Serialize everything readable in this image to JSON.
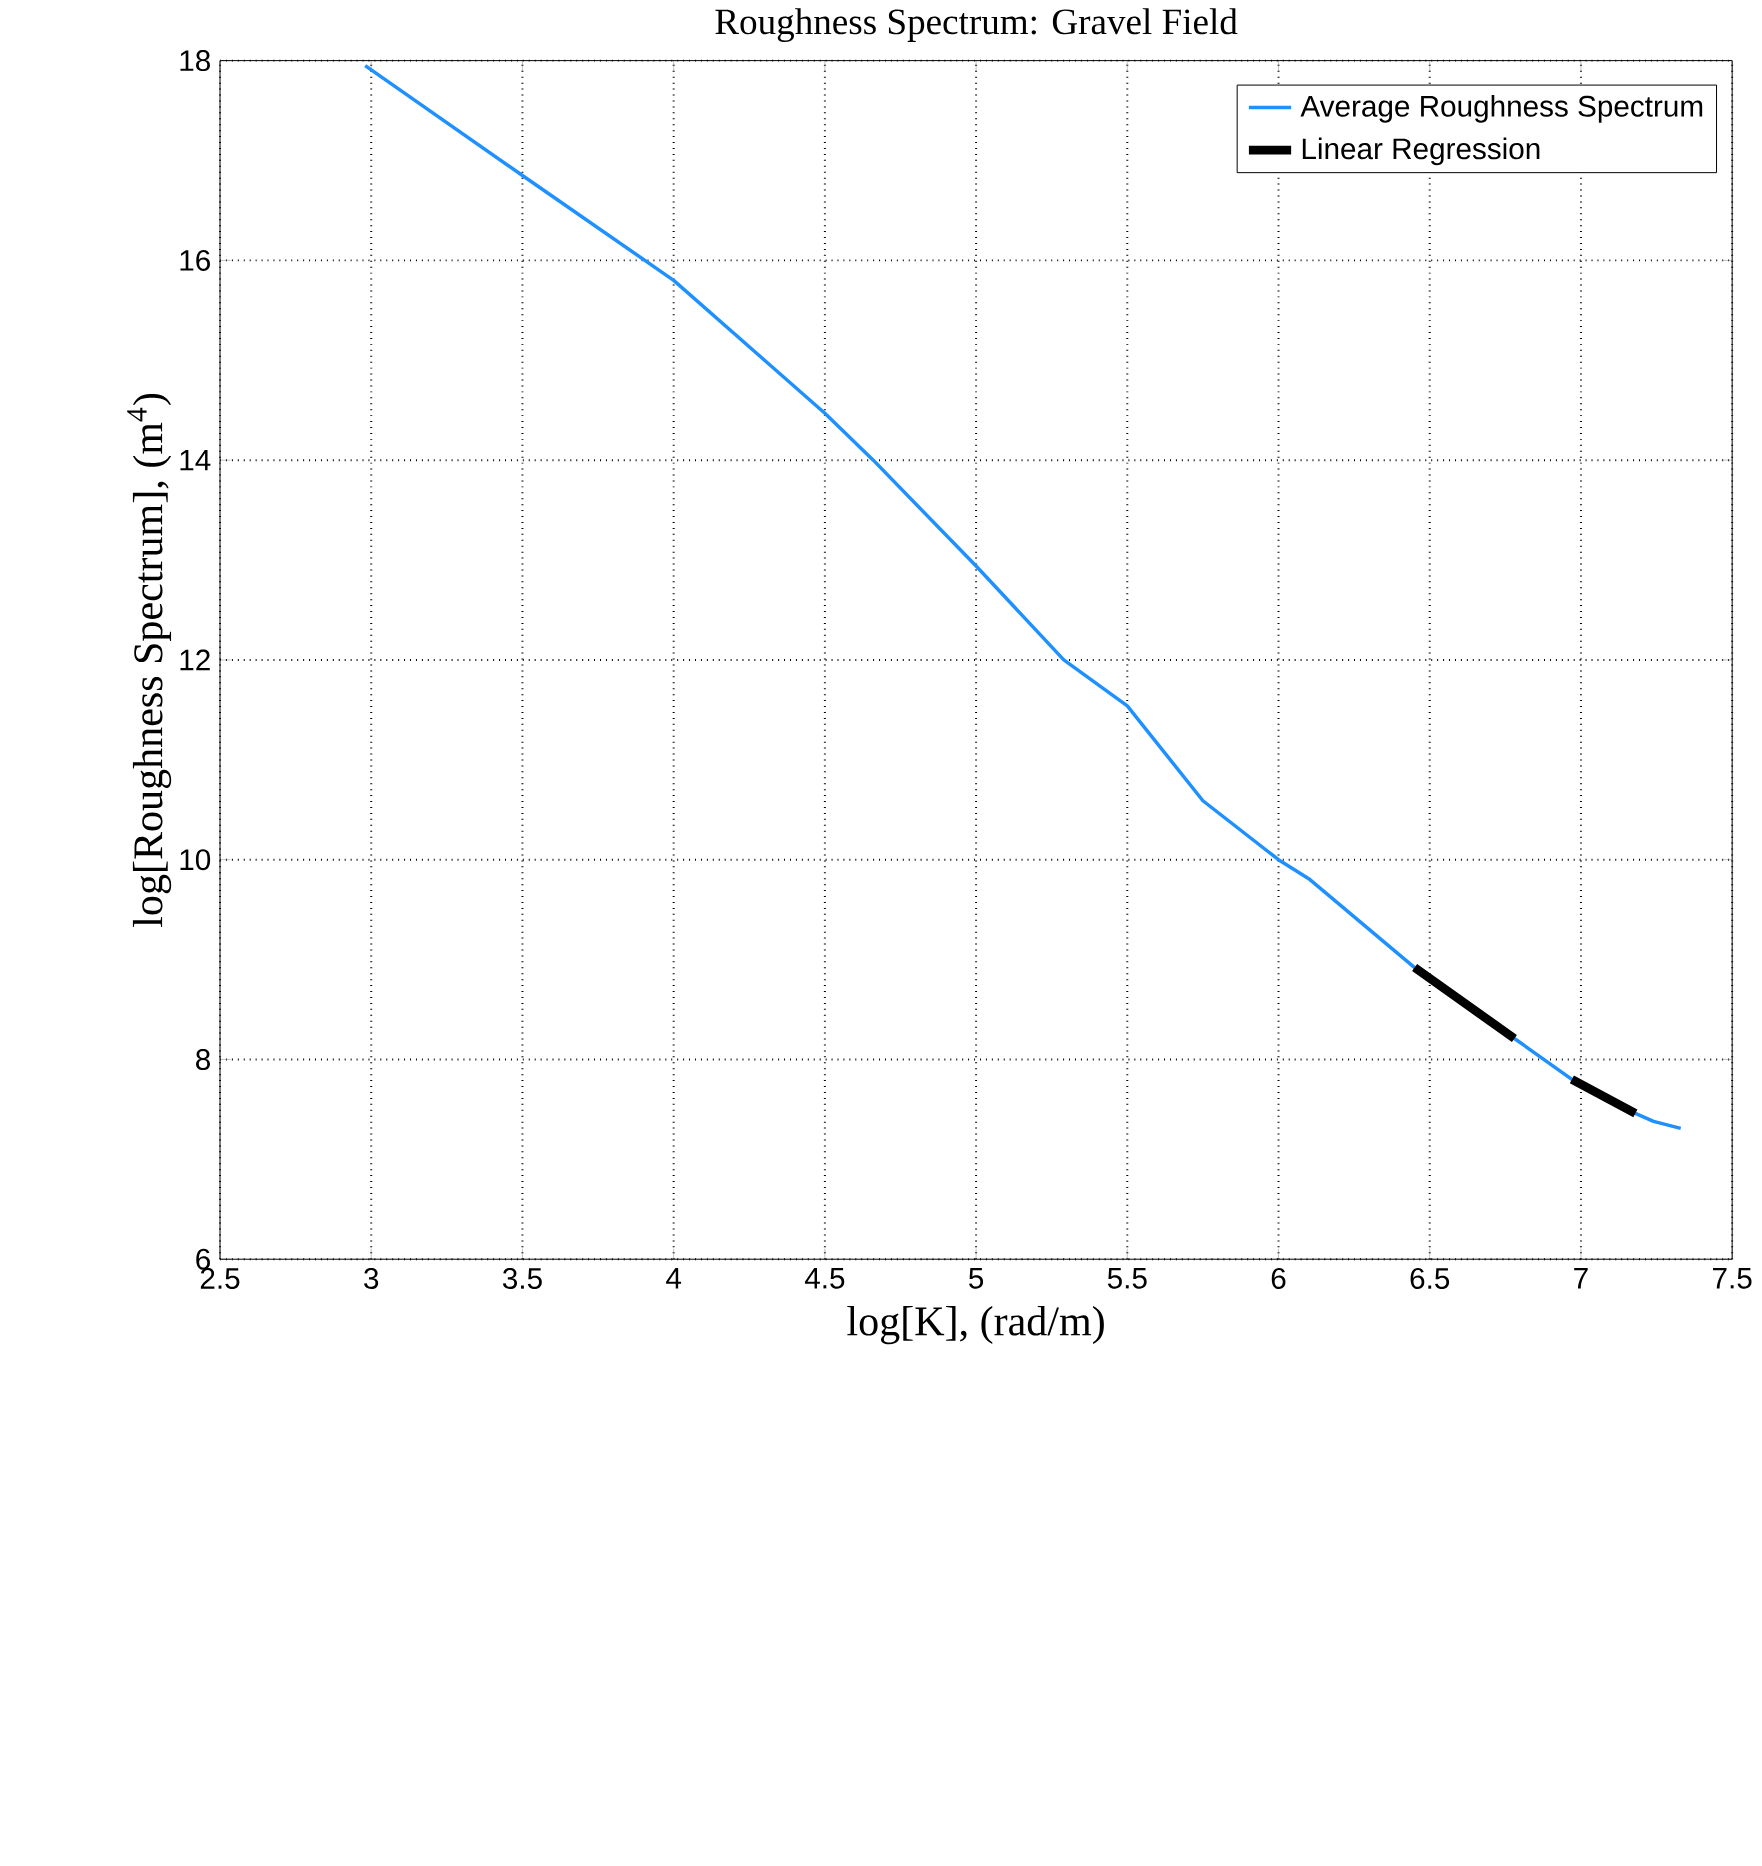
{
  "chart_data": {
    "type": "line",
    "title": "Roughness Spectrum: Gravel Field",
    "xlabel": "log[K], (rad/m)",
    "ylabel": "log[Roughness Spectrum], (m$^{4}$)",
    "xlim": [
      2.5,
      7.5
    ],
    "ylim": [
      6,
      18
    ],
    "xticks": [
      2.5,
      3,
      3.5,
      4,
      4.5,
      5,
      5.5,
      6,
      6.5,
      7,
      7.5
    ],
    "yticks": [
      6,
      8,
      10,
      12,
      14,
      16,
      18
    ],
    "grid": true,
    "legend": "top right",
    "line_style": "solid",
    "marker": "none",
    "series": [
      {
        "name": "Average Roughness Spectrum",
        "color": "#1e90ff",
        "x": [
          2.98,
          3.5,
          4.0,
          4.5,
          4.66,
          5.0,
          5.29,
          5.5,
          5.75,
          6.0,
          6.1,
          6.45,
          6.78,
          6.97,
          7.18,
          7.24,
          7.33
        ],
        "values": [
          17.95,
          16.85,
          15.8,
          14.47,
          14.0,
          12.94,
          12.0,
          11.54,
          10.59,
          10.0,
          9.81,
          8.92,
          8.21,
          7.8,
          7.46,
          7.38,
          7.31
        ]
      },
      {
        "name": "Linear Regression",
        "color": "#000000",
        "x": [
          6.45,
          6.78,
          null,
          6.97,
          7.18
        ],
        "values": [
          8.92,
          8.21,
          null,
          7.8,
          7.46
        ]
      }
    ]
  }
}
